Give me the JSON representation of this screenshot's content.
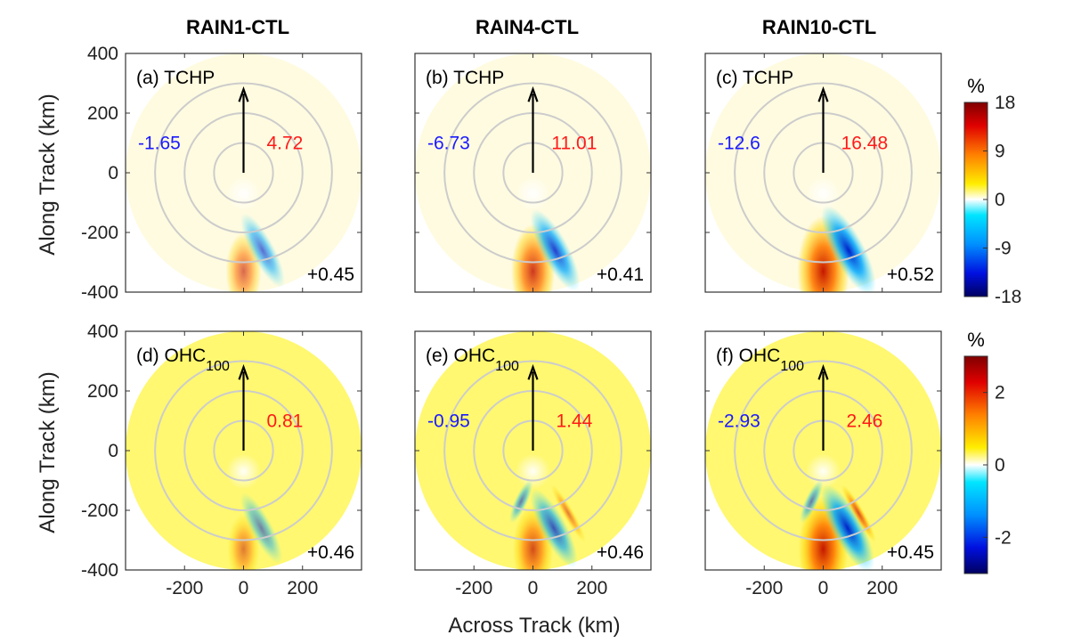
{
  "chart_data": {
    "type": "heatmap",
    "column_titles": [
      "RAIN1-CTL",
      "RAIN4-CTL",
      "RAIN10-CTL"
    ],
    "ylabel": "Along Track (km)",
    "xlabel": "Across Track (km)",
    "xlim": [
      -400,
      400
    ],
    "ylim": [
      -400,
      400
    ],
    "x_ticks": [
      "-200",
      "0",
      "200"
    ],
    "y_ticks": [
      "400",
      "200",
      "0",
      "-200",
      "-400"
    ],
    "range_rings_km": [
      100,
      200,
      300
    ],
    "panels": [
      {
        "label": "(a) TCHP",
        "neg": "-1.65",
        "pos": "4.72",
        "corr": "+0.45",
        "amp": 1.0,
        "split": false
      },
      {
        "label": "(b) TCHP",
        "neg": "-6.73",
        "pos": "11.01",
        "corr": "+0.41",
        "amp": 1.7,
        "split": false
      },
      {
        "label": "(c) TCHP",
        "neg": "-12.6",
        "pos": "16.48",
        "corr": "+0.52",
        "amp": 2.4,
        "split": false
      },
      {
        "label": "(d) OHC",
        "sub": "100",
        "neg": "",
        "pos": "0.81",
        "corr": "+0.46",
        "amp": 0.7,
        "split": false
      },
      {
        "label": "(e) OHC",
        "sub": "100",
        "neg": "-0.95",
        "pos": "1.44",
        "corr": "+0.46",
        "amp": 1.4,
        "split": true
      },
      {
        "label": "(f) OHC",
        "sub": "100",
        "neg": "-2.93",
        "pos": "2.46",
        "corr": "+0.45",
        "amp": 2.2,
        "split": true
      }
    ],
    "colorbars": [
      {
        "unit": "%",
        "ticks": [
          "18",
          "9",
          "0",
          "-9",
          "-18"
        ],
        "range": [
          -18,
          18
        ]
      },
      {
        "unit": "%",
        "ticks": [
          "2",
          "0",
          "-2"
        ],
        "range": [
          -3,
          3
        ]
      }
    ]
  },
  "colors": {
    "background_tchp": "#fffbe0",
    "background_ohc": "#fff870",
    "rings": "#cccccc",
    "negative_text": "#1a1aff",
    "positive_text": "#ff1a1a"
  }
}
